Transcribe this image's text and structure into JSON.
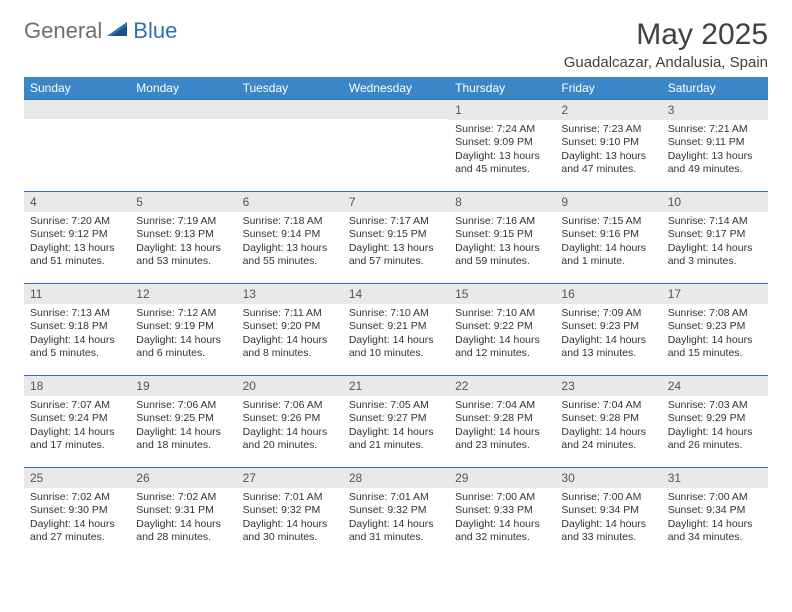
{
  "brand": {
    "part1": "General",
    "part2": "Blue"
  },
  "title": "May 2025",
  "location": "Guadalcazar, Andalusia, Spain",
  "colors": {
    "header_bg": "#3b86c7",
    "band_bg": "#e9e9e9",
    "row_border": "#2f6fb5",
    "text": "#333333",
    "brand_gray": "#6f6f6f",
    "brand_blue": "#2f6fb5"
  },
  "dow": [
    "Sunday",
    "Monday",
    "Tuesday",
    "Wednesday",
    "Thursday",
    "Friday",
    "Saturday"
  ],
  "weeks": [
    [
      null,
      null,
      null,
      null,
      {
        "n": "1",
        "sr": "7:24 AM",
        "ss": "9:09 PM",
        "dl": "13 hours and 45 minutes."
      },
      {
        "n": "2",
        "sr": "7:23 AM",
        "ss": "9:10 PM",
        "dl": "13 hours and 47 minutes."
      },
      {
        "n": "3",
        "sr": "7:21 AM",
        "ss": "9:11 PM",
        "dl": "13 hours and 49 minutes."
      }
    ],
    [
      {
        "n": "4",
        "sr": "7:20 AM",
        "ss": "9:12 PM",
        "dl": "13 hours and 51 minutes."
      },
      {
        "n": "5",
        "sr": "7:19 AM",
        "ss": "9:13 PM",
        "dl": "13 hours and 53 minutes."
      },
      {
        "n": "6",
        "sr": "7:18 AM",
        "ss": "9:14 PM",
        "dl": "13 hours and 55 minutes."
      },
      {
        "n": "7",
        "sr": "7:17 AM",
        "ss": "9:15 PM",
        "dl": "13 hours and 57 minutes."
      },
      {
        "n": "8",
        "sr": "7:16 AM",
        "ss": "9:15 PM",
        "dl": "13 hours and 59 minutes."
      },
      {
        "n": "9",
        "sr": "7:15 AM",
        "ss": "9:16 PM",
        "dl": "14 hours and 1 minute."
      },
      {
        "n": "10",
        "sr": "7:14 AM",
        "ss": "9:17 PM",
        "dl": "14 hours and 3 minutes."
      }
    ],
    [
      {
        "n": "11",
        "sr": "7:13 AM",
        "ss": "9:18 PM",
        "dl": "14 hours and 5 minutes."
      },
      {
        "n": "12",
        "sr": "7:12 AM",
        "ss": "9:19 PM",
        "dl": "14 hours and 6 minutes."
      },
      {
        "n": "13",
        "sr": "7:11 AM",
        "ss": "9:20 PM",
        "dl": "14 hours and 8 minutes."
      },
      {
        "n": "14",
        "sr": "7:10 AM",
        "ss": "9:21 PM",
        "dl": "14 hours and 10 minutes."
      },
      {
        "n": "15",
        "sr": "7:10 AM",
        "ss": "9:22 PM",
        "dl": "14 hours and 12 minutes."
      },
      {
        "n": "16",
        "sr": "7:09 AM",
        "ss": "9:23 PM",
        "dl": "14 hours and 13 minutes."
      },
      {
        "n": "17",
        "sr": "7:08 AM",
        "ss": "9:23 PM",
        "dl": "14 hours and 15 minutes."
      }
    ],
    [
      {
        "n": "18",
        "sr": "7:07 AM",
        "ss": "9:24 PM",
        "dl": "14 hours and 17 minutes."
      },
      {
        "n": "19",
        "sr": "7:06 AM",
        "ss": "9:25 PM",
        "dl": "14 hours and 18 minutes."
      },
      {
        "n": "20",
        "sr": "7:06 AM",
        "ss": "9:26 PM",
        "dl": "14 hours and 20 minutes."
      },
      {
        "n": "21",
        "sr": "7:05 AM",
        "ss": "9:27 PM",
        "dl": "14 hours and 21 minutes."
      },
      {
        "n": "22",
        "sr": "7:04 AM",
        "ss": "9:28 PM",
        "dl": "14 hours and 23 minutes."
      },
      {
        "n": "23",
        "sr": "7:04 AM",
        "ss": "9:28 PM",
        "dl": "14 hours and 24 minutes."
      },
      {
        "n": "24",
        "sr": "7:03 AM",
        "ss": "9:29 PM",
        "dl": "14 hours and 26 minutes."
      }
    ],
    [
      {
        "n": "25",
        "sr": "7:02 AM",
        "ss": "9:30 PM",
        "dl": "14 hours and 27 minutes."
      },
      {
        "n": "26",
        "sr": "7:02 AM",
        "ss": "9:31 PM",
        "dl": "14 hours and 28 minutes."
      },
      {
        "n": "27",
        "sr": "7:01 AM",
        "ss": "9:32 PM",
        "dl": "14 hours and 30 minutes."
      },
      {
        "n": "28",
        "sr": "7:01 AM",
        "ss": "9:32 PM",
        "dl": "14 hours and 31 minutes."
      },
      {
        "n": "29",
        "sr": "7:00 AM",
        "ss": "9:33 PM",
        "dl": "14 hours and 32 minutes."
      },
      {
        "n": "30",
        "sr": "7:00 AM",
        "ss": "9:34 PM",
        "dl": "14 hours and 33 minutes."
      },
      {
        "n": "31",
        "sr": "7:00 AM",
        "ss": "9:34 PM",
        "dl": "14 hours and 34 minutes."
      }
    ]
  ],
  "labels": {
    "sunrise": "Sunrise: ",
    "sunset": "Sunset: ",
    "daylight": "Daylight: "
  }
}
